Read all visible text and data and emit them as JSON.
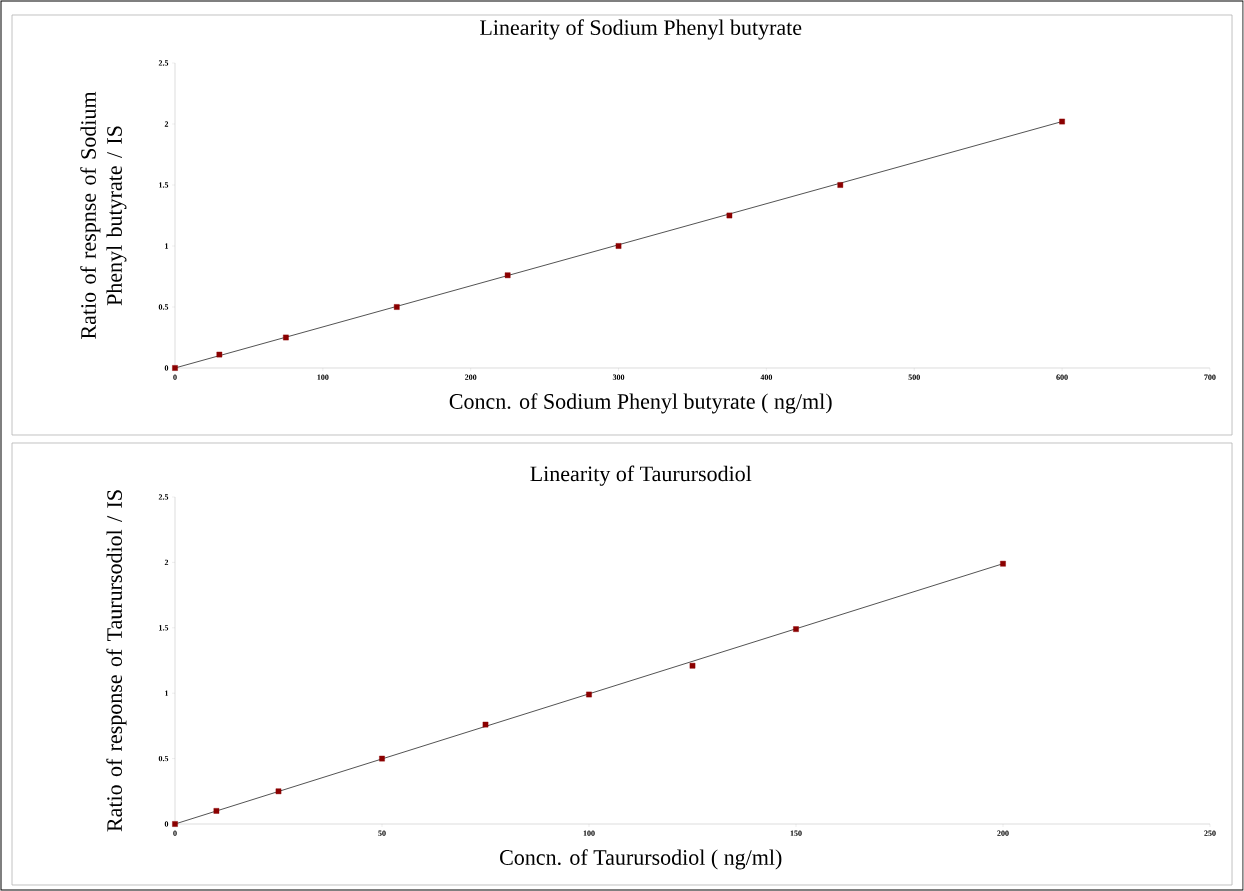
{
  "chart_data": [
    {
      "type": "scatter",
      "title": "Linearity of  Sodium Phenyl butyrate",
      "xlabel": "Concn. of Sodium Phenyl butyrate ( ng/ml)",
      "ylabel": "Ratio of respnse of Sodium Phenyl butyrate / IS",
      "xlim": [
        0,
        700
      ],
      "ylim": [
        0,
        2.5
      ],
      "xticks": [
        0,
        100,
        200,
        300,
        400,
        500,
        600,
        700
      ],
      "yticks": [
        0,
        0.5,
        1,
        1.5,
        2,
        2.5
      ],
      "series": [
        {
          "type": "scatter",
          "color": "#8b0000",
          "marker": "square",
          "x": [
            0,
            30,
            75,
            150,
            225,
            300,
            375,
            450,
            600
          ],
          "values": [
            0,
            0.11,
            0.25,
            0.5,
            0.76,
            1.0,
            1.25,
            1.5,
            2.02
          ]
        },
        {
          "type": "line",
          "marker": "none",
          "color": "#404040",
          "x": [
            0,
            600
          ],
          "values": [
            0,
            2.02
          ]
        }
      ]
    },
    {
      "type": "scatter",
      "title": "Linearity of  Taurursodiol",
      "xlabel": "Concn. of Taurursodiol ( ng/ml)",
      "ylabel": "Ratio of response of Taurursodiol / IS",
      "xlim": [
        0,
        250
      ],
      "ylim": [
        0,
        2.5
      ],
      "xticks": [
        0,
        50,
        100,
        150,
        200,
        250
      ],
      "yticks": [
        0,
        0.5,
        1,
        1.5,
        2,
        2.5
      ],
      "series": [
        {
          "type": "scatter",
          "color": "#8b0000",
          "marker": "square",
          "x": [
            0,
            10,
            25,
            50,
            75,
            100,
            125,
            150,
            200
          ],
          "values": [
            0,
            0.1,
            0.25,
            0.5,
            0.76,
            0.99,
            1.21,
            1.49,
            1.99
          ]
        },
        {
          "type": "line",
          "marker": "none",
          "color": "#404040",
          "x": [
            0,
            200
          ],
          "values": [
            0,
            1.99
          ]
        }
      ]
    }
  ]
}
